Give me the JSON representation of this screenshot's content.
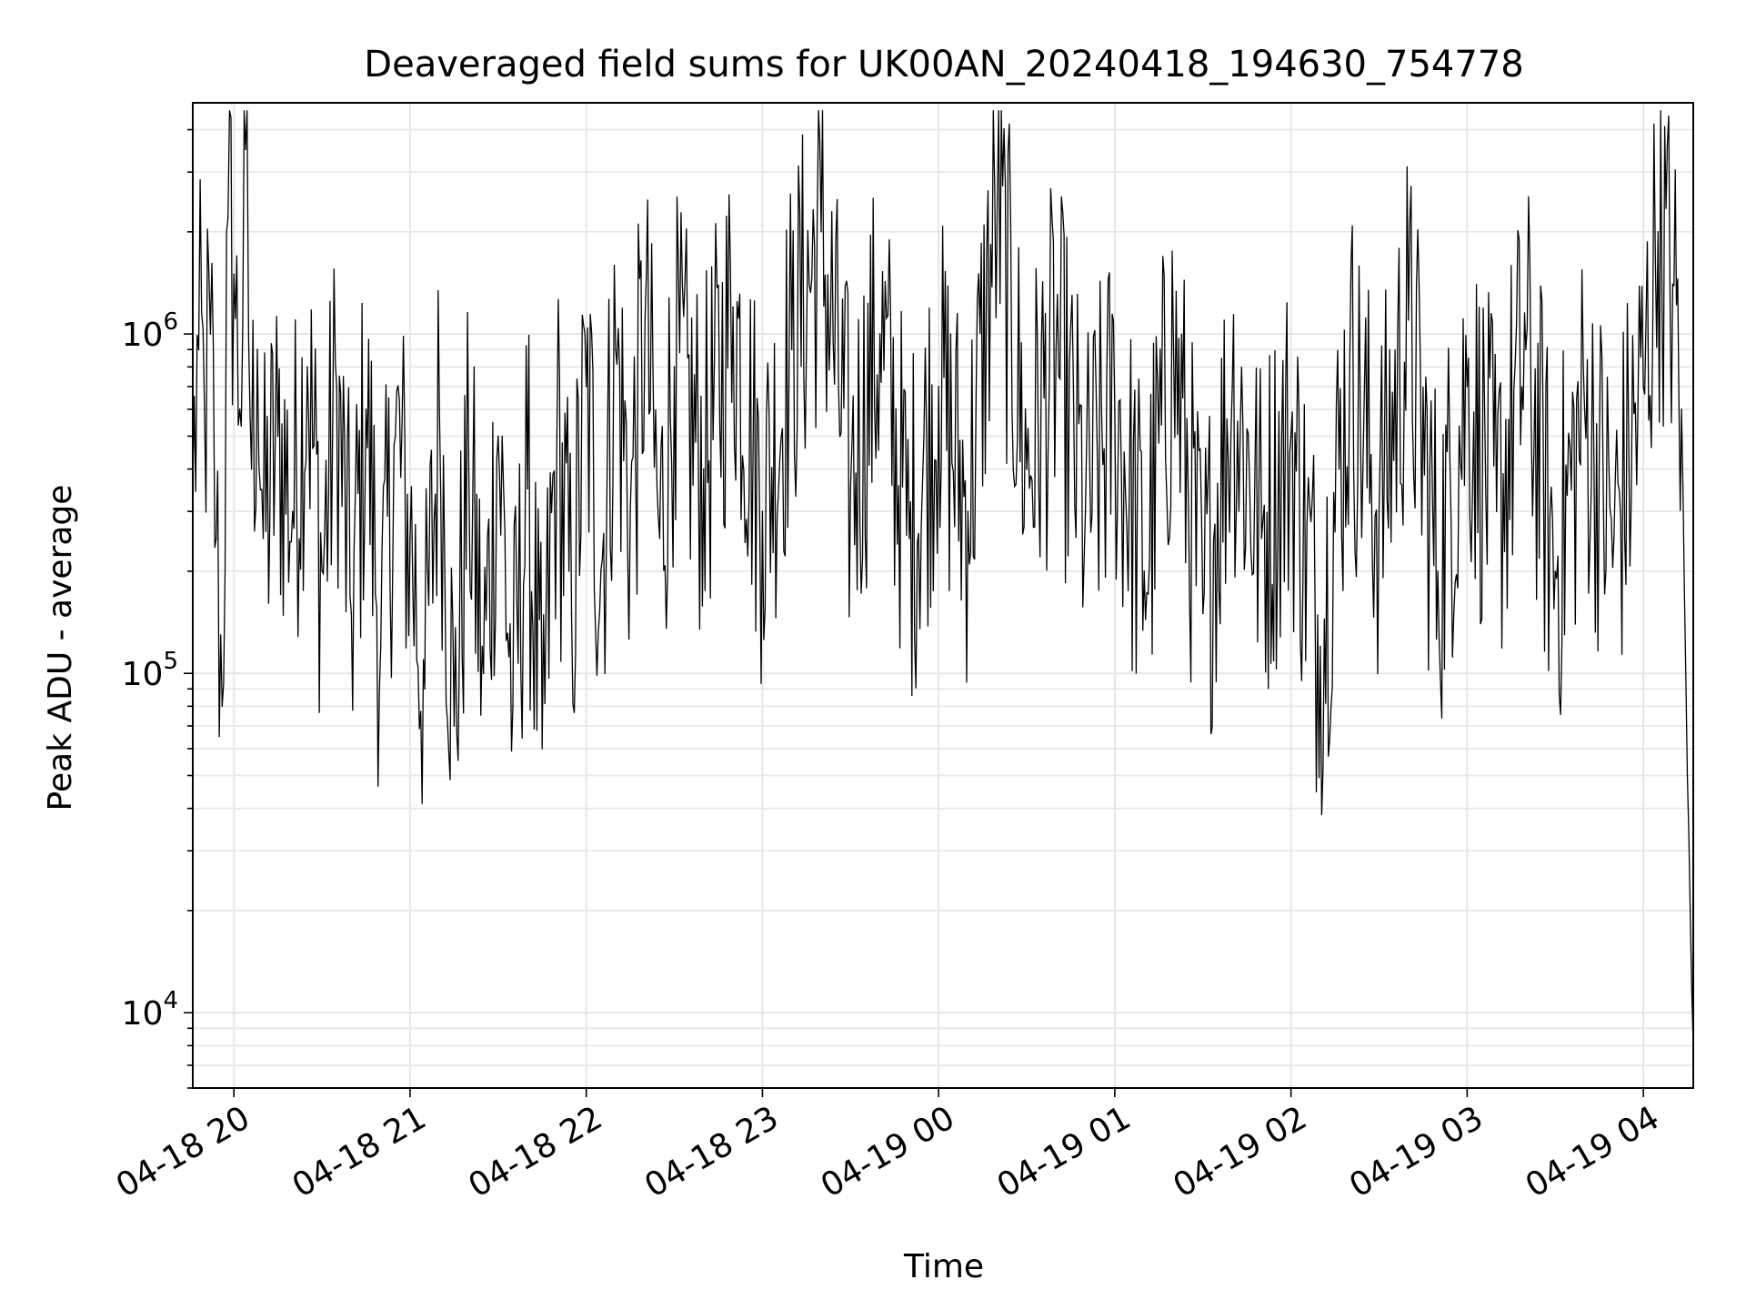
{
  "chart_data": {
    "type": "line",
    "title": "Deaveraged field sums for UK00AN_20240418_194630_754778",
    "xlabel": "Time",
    "ylabel": "Peak ADU - average",
    "yscale": "log",
    "grid": true,
    "line_color": "#000000",
    "grid_color": "#e6e6e6",
    "x_range": [
      "04-18 19:46",
      "04-19 04:17"
    ],
    "y_range": [
      6000,
      4800000
    ],
    "x_ticks": [
      {
        "time": "04-18 20:00",
        "label": "04-18 20"
      },
      {
        "time": "04-18 21:00",
        "label": "04-18 21"
      },
      {
        "time": "04-18 22:00",
        "label": "04-18 22"
      },
      {
        "time": "04-18 23:00",
        "label": "04-18 23"
      },
      {
        "time": "04-19 00:00",
        "label": "04-19 00"
      },
      {
        "time": "04-19 01:00",
        "label": "04-19 01"
      },
      {
        "time": "04-19 02:00",
        "label": "04-19 02"
      },
      {
        "time": "04-19 03:00",
        "label": "04-19 03"
      },
      {
        "time": "04-19 04:00",
        "label": "04-19 04"
      }
    ],
    "y_ticks": [
      {
        "value": 10000,
        "base": "10",
        "exp": "4"
      },
      {
        "value": 100000,
        "base": "10",
        "exp": "5"
      },
      {
        "value": 1000000,
        "base": "10",
        "exp": "6"
      }
    ],
    "series": [
      {
        "points": [
          [
            "04-18 19:46",
            350000
          ],
          [
            "04-18 19:48",
            900000
          ],
          [
            "04-18 19:50",
            600000
          ],
          [
            "04-18 19:52",
            1000000
          ],
          [
            "04-18 19:54",
            250000
          ],
          [
            "04-18 19:56",
            80000
          ],
          [
            "04-18 19:58",
            2200000
          ],
          [
            "04-18 20:00",
            1500000
          ],
          [
            "04-18 20:02",
            600000
          ],
          [
            "04-18 20:04",
            3500000
          ],
          [
            "04-18 20:06",
            400000
          ],
          [
            "04-18 20:08",
            900000
          ],
          [
            "04-18 20:10",
            250000
          ],
          [
            "04-18 20:15",
            500000
          ],
          [
            "04-18 20:20",
            300000
          ],
          [
            "04-18 20:25",
            800000
          ],
          [
            "04-18 20:30",
            200000
          ],
          [
            "04-18 20:35",
            700000
          ],
          [
            "04-18 20:40",
            150000
          ],
          [
            "04-18 20:45",
            600000
          ],
          [
            "04-18 20:50",
            120000
          ],
          [
            "04-18 20:55",
            500000
          ],
          [
            "04-18 21:00",
            250000
          ],
          [
            "04-18 21:05",
            90000
          ],
          [
            "04-18 21:10",
            600000
          ],
          [
            "04-18 21:15",
            70000
          ],
          [
            "04-18 21:20",
            400000
          ],
          [
            "04-18 21:25",
            100000
          ],
          [
            "04-18 21:30",
            500000
          ],
          [
            "04-18 21:35",
            80000
          ],
          [
            "04-18 21:40",
            350000
          ],
          [
            "04-18 21:45",
            60000
          ],
          [
            "04-18 21:50",
            500000
          ],
          [
            "04-18 21:55",
            150000
          ],
          [
            "04-18 22:00",
            700000
          ],
          [
            "04-18 22:05",
            200000
          ],
          [
            "04-18 22:10",
            900000
          ],
          [
            "04-18 22:15",
            300000
          ],
          [
            "04-18 22:20",
            1100000
          ],
          [
            "04-18 22:25",
            250000
          ],
          [
            "04-18 22:30",
            800000
          ],
          [
            "04-18 22:40",
            400000
          ],
          [
            "04-18 22:50",
            1200000
          ],
          [
            "04-18 23:00",
            300000
          ],
          [
            "04-18 23:10",
            900000
          ],
          [
            "04-18 23:20",
            2000000
          ],
          [
            "04-18 23:30",
            350000
          ],
          [
            "04-18 23:40",
            1000000
          ],
          [
            "04-18 23:50",
            250000
          ],
          [
            "04-19 00:00",
            700000
          ],
          [
            "04-19 00:10",
            300000
          ],
          [
            "04-19 00:20",
            2500000
          ],
          [
            "04-19 00:30",
            400000
          ],
          [
            "04-19 00:40",
            900000
          ],
          [
            "04-19 00:50",
            300000
          ],
          [
            "04-19 01:00",
            600000
          ],
          [
            "04-19 01:10",
            200000
          ],
          [
            "04-19 01:20",
            900000
          ],
          [
            "04-19 01:30",
            150000
          ],
          [
            "04-19 01:40",
            700000
          ],
          [
            "04-19 01:50",
            250000
          ],
          [
            "04-19 02:00",
            500000
          ],
          [
            "04-19 02:10",
            120000
          ],
          [
            "04-19 02:20",
            800000
          ],
          [
            "04-19 02:30",
            300000
          ],
          [
            "04-19 02:40",
            1100000
          ],
          [
            "04-19 02:50",
            200000
          ],
          [
            "04-19 03:00",
            700000
          ],
          [
            "04-19 03:10",
            300000
          ],
          [
            "04-19 03:20",
            900000
          ],
          [
            "04-19 03:30",
            200000
          ],
          [
            "04-19 03:40",
            600000
          ],
          [
            "04-19 03:50",
            250000
          ],
          [
            "04-19 04:00",
            700000
          ],
          [
            "04-19 04:05",
            2000000
          ],
          [
            "04-19 04:10",
            1400000
          ],
          [
            "04-19 04:13",
            600000
          ],
          [
            "04-19 04:15",
            50000
          ],
          [
            "04-19 04:17",
            8000
          ]
        ]
      }
    ]
  }
}
